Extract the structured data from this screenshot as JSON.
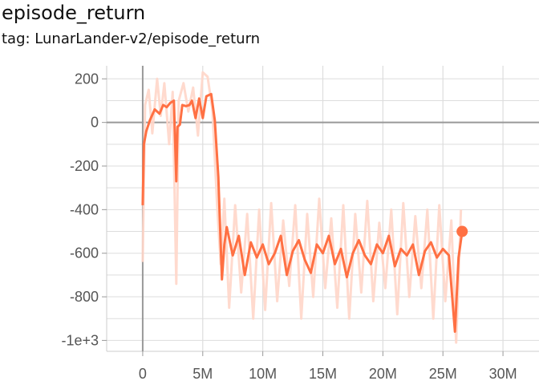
{
  "header": {
    "title": "episode_return",
    "subtitle": "tag: LunarLander-v2/episode_return"
  },
  "chart_data": {
    "type": "line",
    "title": "episode_return",
    "subtitle": "tag: LunarLander-v2/episode_return",
    "xlabel": "",
    "ylabel": "",
    "xlim": [
      -3000000,
      33000000
    ],
    "ylim": [
      -1050,
      260
    ],
    "x_ticks": [
      0,
      5000000,
      10000000,
      15000000,
      20000000,
      25000000,
      30000000
    ],
    "x_tick_labels": [
      "0",
      "5M",
      "10M",
      "15M",
      "20M",
      "25M",
      "30M"
    ],
    "y_ticks": [
      200,
      0,
      -200,
      -400,
      -600,
      -800,
      -1000
    ],
    "y_tick_labels": [
      "200",
      "0",
      "-200",
      "-400",
      "-600",
      "-800",
      "-1e+3"
    ],
    "grid": true,
    "colors": {
      "smoothed": "#ff7043",
      "raw": "#ffd6c9",
      "grid": "#dddddd",
      "zero_axis": "#999999"
    },
    "series": [
      {
        "role": "smoothed",
        "x": [
          0,
          100000,
          300000,
          600000,
          1000000,
          1400000,
          1700000,
          2000000,
          2300000,
          2600000,
          2800000,
          2900000,
          3100000,
          3300000,
          3600000,
          3900000,
          4100000,
          4400000,
          4700000,
          5000000,
          5300000,
          5700000,
          6000000,
          6300000,
          6600000,
          6800000,
          7000000,
          7500000,
          8000000,
          8500000,
          9000000,
          9500000,
          10000000,
          10500000,
          11000000,
          11500000,
          12000000,
          12500000,
          13000000,
          13500000,
          14000000,
          14500000,
          15000000,
          15500000,
          16000000,
          16500000,
          17000000,
          17500000,
          18000000,
          18500000,
          19000000,
          19500000,
          20000000,
          20500000,
          21000000,
          21500000,
          22000000,
          22500000,
          23000000,
          23500000,
          24000000,
          24500000,
          25000000,
          25500000,
          26000000,
          26300000,
          26600000
        ],
        "y": [
          -380,
          -100,
          -40,
          10,
          60,
          40,
          80,
          70,
          90,
          100,
          -270,
          -20,
          -10,
          80,
          75,
          80,
          100,
          20,
          110,
          20,
          120,
          130,
          10,
          -250,
          -720,
          -560,
          -480,
          -610,
          -520,
          -700,
          -550,
          -620,
          -560,
          -650,
          -600,
          -520,
          -700,
          -590,
          -540,
          -630,
          -690,
          -560,
          -600,
          -520,
          -650,
          -580,
          -710,
          -600,
          -540,
          -610,
          -650,
          -560,
          -600,
          -520,
          -660,
          -580,
          -610,
          -560,
          -700,
          -590,
          -550,
          -620,
          -580,
          -610,
          -960,
          -620,
          -500
        ]
      },
      {
        "role": "raw",
        "x": [
          0,
          200000,
          500000,
          800000,
          1200000,
          1500000,
          1800000,
          2200000,
          2500000,
          2800000,
          3000000,
          3400000,
          3800000,
          4200000,
          4600000,
          5000000,
          5400000,
          5800000,
          6200000,
          6500000,
          6800000,
          7200000,
          7700000,
          8200000,
          8700000,
          9200000,
          9700000,
          10200000,
          10700000,
          11200000,
          11700000,
          12200000,
          12700000,
          13200000,
          13700000,
          14200000,
          14700000,
          15200000,
          15700000,
          16200000,
          16700000,
          17200000,
          17700000,
          18200000,
          18700000,
          19200000,
          19700000,
          20200000,
          20700000,
          21200000,
          21700000,
          22200000,
          22700000,
          23200000,
          23700000,
          24200000,
          24700000,
          25200000,
          25700000,
          26100000,
          26500000
        ],
        "y": [
          -640,
          80,
          150,
          -50,
          200,
          30,
          180,
          -100,
          140,
          -740,
          100,
          180,
          50,
          160,
          -60,
          230,
          210,
          60,
          -380,
          -650,
          -350,
          -850,
          -380,
          -780,
          -420,
          -900,
          -400,
          -860,
          -370,
          -820,
          -450,
          -750,
          -380,
          -900,
          -420,
          -800,
          -350,
          -760,
          -440,
          -850,
          -380,
          -900,
          -420,
          -780,
          -360,
          -820,
          -460,
          -760,
          -400,
          -880,
          -370,
          -800,
          -430,
          -760,
          -400,
          -900,
          -380,
          -820,
          -450,
          -1010,
          -400
        ]
      }
    ],
    "last_point": {
      "x": 26600000,
      "y": -500
    }
  }
}
